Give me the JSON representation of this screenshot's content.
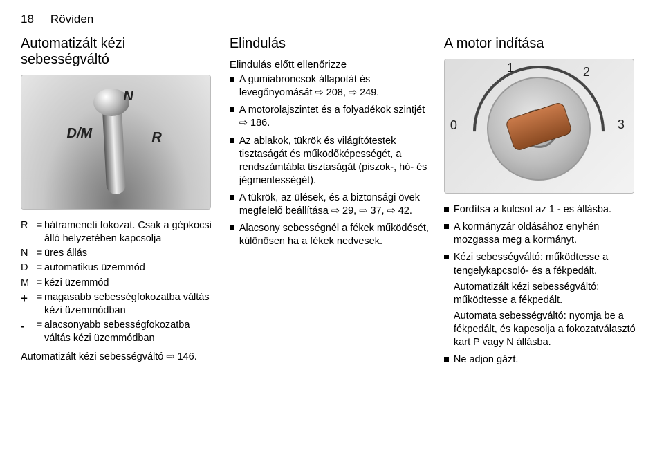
{
  "page_number": "18",
  "section": "Röviden",
  "col1": {
    "title": "Automatizált kézi sebességváltó",
    "gear_labels": {
      "n": "N",
      "dm": "D/M",
      "r": "R"
    },
    "defs": [
      {
        "key": "R",
        "val": "hátrameneti fokozat. Csak a gépkocsi álló helyzetében kapcsolja"
      },
      {
        "key": "N",
        "val": "üres állás"
      },
      {
        "key": "D",
        "val": "automatikus üzemmód"
      },
      {
        "key": "M",
        "val": "kézi üzemmód"
      },
      {
        "key": "+",
        "val": "magasabb sebességfokozatba váltás kézi üzemmódban"
      },
      {
        "key": "-",
        "val": "alacsonyabb sebességfokozatba váltás kézi üzemmódban"
      }
    ],
    "footer": "Automatizált kézi sebességváltó ⇨ 146."
  },
  "col2": {
    "title": "Elindulás",
    "subtitle": "Elindulás előtt ellenőrizze",
    "items": [
      "A gumiabroncsok állapotát és levegőnyomását ⇨ 208, ⇨ 249.",
      "A motorolajszintet és a folyadékok szintjét ⇨ 186.",
      "Az ablakok, tükrök és világítótestek tisztaságát és működőképességét, a rendszámtábla tisztaságát (piszok-, hó- és jégmentességét).",
      "A tükrök, az ülések, és a biztonsági övek megfelelő beállítása ⇨ 29, ⇨ 37, ⇨ 42.",
      "Alacsony sebességnél a fékek működését, különösen ha a fékek nedvesek."
    ]
  },
  "col3": {
    "title": "A motor indítása",
    "ign_labels": {
      "p0": "0",
      "p1": "1",
      "p2": "2",
      "p3": "3"
    },
    "items": [
      "Fordítsa a kulcsot az 1 - es állásba.",
      "A kormányzár oldásához enyhén mozgassa meg a kormányt.",
      "Kézi sebességváltó: működtesse a tengelykapcsoló- és a fékpedált.\nAutomatizált kézi sebességváltó: működtesse a fékpedált.\nAutomata sebességváltó: nyomja be a fékpedált, és kapcsolja a fokozatválasztó kart P vagy N állásba.",
      "Ne adjon gázt."
    ]
  }
}
